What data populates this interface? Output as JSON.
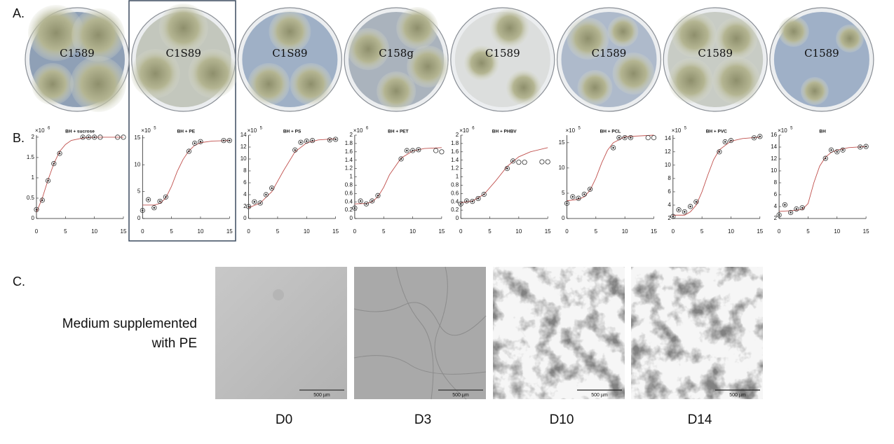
{
  "panels": {
    "a": "A.",
    "b": "B.",
    "c": "C."
  },
  "plates": {
    "labels": [
      "C1589",
      "C1S89",
      "C1S89",
      "C158g",
      "C1589",
      "C1589",
      "C1589",
      "C1589"
    ]
  },
  "chart_data": [
    {
      "type": "scatter",
      "title": "BH + sucrose",
      "y_multiplier": {
        "base": "×10",
        "exponent": "6"
      },
      "color": "#333333",
      "fit_color": "#c0504d",
      "x": [
        0,
        1,
        2,
        3,
        4,
        8,
        9,
        10,
        11,
        14,
        15
      ],
      "values": [
        0.22,
        0.45,
        0.93,
        1.35,
        1.6,
        2.0,
        2.0,
        2.0,
        2.0,
        2.0,
        2.0
      ],
      "point_styles": [
        "filled",
        "filled",
        "filled",
        "filled",
        "filled",
        "filled",
        "filled",
        "filled",
        "open",
        "open",
        "open"
      ],
      "fit": {
        "x": [
          0,
          1,
          2,
          3,
          4,
          5,
          6,
          8,
          10,
          15
        ],
        "values": [
          0.15,
          0.5,
          0.95,
          1.35,
          1.65,
          1.82,
          1.92,
          1.98,
          2.0,
          2.0
        ]
      },
      "xlim": [
        0,
        15
      ],
      "xticks": [
        0,
        5,
        10,
        15
      ],
      "ylim": [
        0,
        2.05
      ],
      "yticks": [
        0,
        0.5,
        1,
        1.5,
        2
      ]
    },
    {
      "type": "scatter",
      "title": "BH + PE",
      "y_multiplier": {
        "base": "×10",
        "exponent": "5"
      },
      "color": "#333333",
      "fit_color": "#c0504d",
      "x": [
        0,
        1,
        2,
        3,
        4,
        8,
        9,
        10,
        14,
        15
      ],
      "values": [
        1.5,
        3.5,
        2.0,
        3.2,
        4.0,
        12.5,
        14.0,
        14.3,
        14.5,
        14.5
      ],
      "point_styles": [
        "filled",
        "filled",
        "filled",
        "filled",
        "filled",
        "filled",
        "filled",
        "filled",
        "filled",
        "filled"
      ],
      "fit": {
        "x": [
          0,
          2,
          3,
          4,
          5,
          6,
          7,
          8,
          9,
          10,
          12,
          15
        ],
        "values": [
          2.5,
          2.5,
          2.8,
          3.8,
          6,
          8.8,
          11,
          12.6,
          13.6,
          14.1,
          14.4,
          14.5
        ]
      },
      "xlim": [
        0,
        15
      ],
      "xticks": [
        0,
        5,
        10,
        15
      ],
      "ylim": [
        0,
        15.5
      ],
      "yticks": [
        0,
        5,
        10,
        15
      ]
    },
    {
      "type": "scatter",
      "title": "BH + PS",
      "y_multiplier": {
        "base": "×10",
        "exponent": "5"
      },
      "color": "#333333",
      "fit_color": "#c0504d",
      "x": [
        0,
        1,
        2,
        3,
        4,
        8,
        9,
        10,
        11,
        14,
        15
      ],
      "values": [
        2.0,
        2.8,
        2.6,
        4.0,
        5.1,
        11.5,
        12.8,
        13.0,
        13.1,
        13.2,
        13.3
      ],
      "point_styles": [
        "filled",
        "filled",
        "filled",
        "filled",
        "filled",
        "filled",
        "filled",
        "filled",
        "filled",
        "filled",
        "filled"
      ],
      "fit": {
        "x": [
          0,
          2,
          4,
          6,
          8,
          10,
          12,
          15
        ],
        "values": [
          1.8,
          2.6,
          4.5,
          8,
          11.2,
          12.7,
          13.2,
          13.4
        ]
      },
      "xlim": [
        0,
        15
      ],
      "xticks": [
        0,
        5,
        10,
        15
      ],
      "ylim": [
        0,
        14
      ],
      "yticks": [
        0,
        2,
        4,
        6,
        8,
        10,
        12,
        14
      ]
    },
    {
      "type": "scatter",
      "title": "BH + PET",
      "y_multiplier": {
        "base": "×10",
        "exponent": "6"
      },
      "color": "#333333",
      "fit_color": "#c0504d",
      "x": [
        0,
        1,
        2,
        3,
        4,
        8,
        9,
        10,
        11,
        14,
        15
      ],
      "values": [
        0.25,
        0.42,
        0.35,
        0.42,
        0.55,
        1.43,
        1.63,
        1.63,
        1.65,
        1.63,
        1.6
      ],
      "point_styles": [
        "filled",
        "filled",
        "filled",
        "filled",
        "filled",
        "filled",
        "filled",
        "filled",
        "filled",
        "open",
        "open"
      ],
      "fit": {
        "x": [
          0,
          2,
          3,
          4,
          5,
          6,
          8,
          10,
          12,
          15
        ],
        "values": [
          0.35,
          0.36,
          0.4,
          0.52,
          0.75,
          1.05,
          1.45,
          1.62,
          1.68,
          1.7
        ]
      },
      "xlim": [
        0,
        15
      ],
      "xticks": [
        0,
        5,
        10,
        15
      ],
      "ylim": [
        0,
        2
      ],
      "yticks": [
        0,
        0.2,
        0.4,
        0.6,
        0.8,
        1,
        1.2,
        1.4,
        1.6,
        1.8,
        2
      ]
    },
    {
      "type": "scatter",
      "title": "BH + PHBV",
      "y_multiplier": {
        "base": "×10",
        "exponent": "6"
      },
      "color": "#333333",
      "fit_color": "#c0504d",
      "x": [
        0,
        1,
        2,
        3,
        4,
        8,
        9,
        10,
        11,
        14,
        15
      ],
      "values": [
        0.35,
        0.42,
        0.41,
        0.48,
        0.58,
        1.2,
        1.38,
        1.35,
        1.35,
        1.36,
        1.36
      ],
      "point_styles": [
        "filled",
        "filled",
        "filled",
        "filled",
        "filled",
        "filled",
        "filled",
        "open",
        "open",
        "open",
        "open"
      ],
      "fit": {
        "x": [
          0,
          2,
          4,
          6,
          8,
          10,
          12,
          15
        ],
        "values": [
          0.38,
          0.42,
          0.58,
          0.9,
          1.25,
          1.48,
          1.6,
          1.7
        ]
      },
      "xlim": [
        0,
        15
      ],
      "xticks": [
        0,
        5,
        10,
        15
      ],
      "ylim": [
        0,
        2
      ],
      "yticks": [
        0,
        0.2,
        0.4,
        0.6,
        0.8,
        1,
        1.2,
        1.4,
        1.6,
        1.8,
        2
      ]
    },
    {
      "type": "scatter",
      "title": "BH + PCL",
      "y_multiplier": {
        "base": "×10",
        "exponent": "5"
      },
      "color": "#333333",
      "fit_color": "#c0504d",
      "x": [
        0,
        1,
        2,
        3,
        4,
        8,
        9,
        10,
        11,
        14,
        15
      ],
      "values": [
        3.0,
        4.3,
        4.0,
        4.8,
        5.8,
        14,
        16,
        16,
        16,
        16,
        16
      ],
      "point_styles": [
        "filled",
        "filled",
        "filled",
        "filled",
        "filled",
        "filled",
        "filled",
        "filled",
        "filled",
        "open",
        "open"
      ],
      "fit": {
        "x": [
          0,
          2,
          3,
          4,
          5,
          6,
          7,
          8,
          10,
          15
        ],
        "values": [
          3.5,
          3.8,
          4.3,
          5.6,
          8,
          11,
          13.5,
          15,
          16.2,
          16.5
        ]
      },
      "xlim": [
        0,
        15
      ],
      "xticks": [
        0,
        5,
        10,
        15
      ],
      "ylim": [
        0,
        16.5
      ],
      "yticks": [
        0,
        5,
        10,
        15
      ]
    },
    {
      "type": "scatter",
      "title": "BH + PVC",
      "y_multiplier": {
        "base": "×10",
        "exponent": "5"
      },
      "color": "#333333",
      "fit_color": "#c0504d",
      "x": [
        0,
        1,
        2,
        3,
        4,
        8,
        9,
        10,
        14,
        15
      ],
      "values": [
        2.3,
        3.3,
        3.0,
        3.8,
        4.5,
        12,
        13.5,
        13.7,
        14.1,
        14.3
      ],
      "point_styles": [
        "filled",
        "filled",
        "filled",
        "filled",
        "filled",
        "filled",
        "filled",
        "filled",
        "filled",
        "filled"
      ],
      "fit": {
        "x": [
          0,
          2,
          3,
          4,
          5,
          6,
          7,
          8,
          10,
          12,
          15
        ],
        "values": [
          2.5,
          2.5,
          3.0,
          4,
          6,
          8.5,
          10.8,
          12.3,
          13.6,
          14.0,
          14.2
        ]
      },
      "xlim": [
        0,
        15
      ],
      "xticks": [
        0,
        5,
        10,
        15
      ],
      "ylim": [
        2,
        14.5
      ],
      "yticks": [
        2,
        4,
        6,
        8,
        10,
        12,
        14
      ]
    },
    {
      "type": "scatter",
      "title": "BH",
      "y_multiplier": {
        "base": "×10",
        "exponent": "5"
      },
      "color": "#333333",
      "fit_color": "#c0504d",
      "x": [
        0,
        1,
        2,
        3,
        4,
        8,
        9,
        10,
        11,
        14,
        15
      ],
      "values": [
        2.6,
        4.3,
        3.0,
        3.6,
        3.8,
        12.1,
        13.5,
        13.2,
        13.5,
        14,
        14.1
      ],
      "point_styles": [
        "filled",
        "filled",
        "filled",
        "filled",
        "filled",
        "filled",
        "filled",
        "filled",
        "filled",
        "filled",
        "filled"
      ],
      "fit": {
        "x": [
          0,
          2,
          4,
          5,
          6,
          7,
          8,
          9,
          10,
          12,
          15
        ],
        "values": [
          3.2,
          3.3,
          3.5,
          4.5,
          8,
          10.8,
          12.3,
          13.1,
          13.5,
          13.9,
          14.1
        ]
      },
      "xlim": [
        0,
        15
      ],
      "xticks": [
        0,
        5,
        10,
        15
      ],
      "ylim": [
        2,
        16
      ],
      "yticks": [
        2,
        4,
        6,
        8,
        10,
        12,
        14,
        16
      ]
    }
  ],
  "microscopy": {
    "row_label": [
      "Medium supplemented",
      "with PE"
    ],
    "images": [
      {
        "label": "D0",
        "scale_bar": "500 µm"
      },
      {
        "label": "D3",
        "scale_bar": "500 µm"
      },
      {
        "label": "D10",
        "scale_bar": "500 µm"
      },
      {
        "label": "D14",
        "scale_bar": "500 µm"
      }
    ]
  }
}
